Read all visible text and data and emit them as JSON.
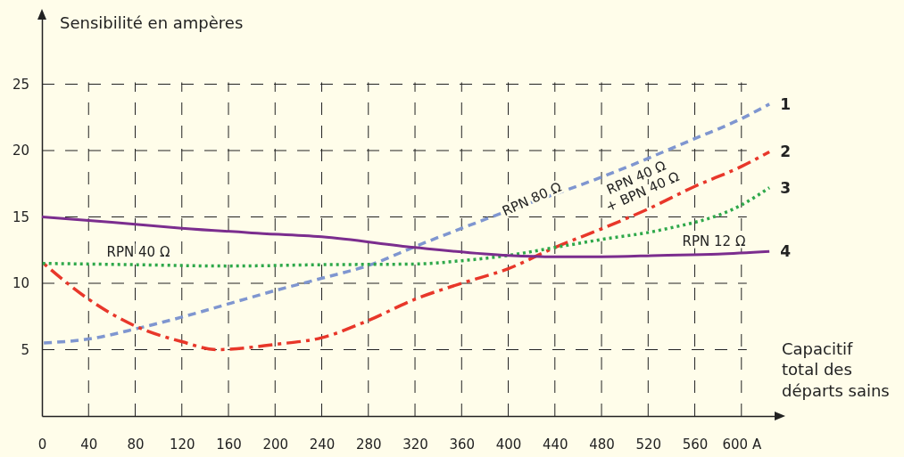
{
  "chart_data": {
    "type": "line",
    "ylabel": "Sensibilité en ampères",
    "xlabel": "Capacitif\ntotal des\ndéparts sains",
    "xlim": [
      0,
      630
    ],
    "ylim": [
      0,
      30
    ],
    "xticks": [
      0,
      40,
      80,
      120,
      160,
      200,
      240,
      280,
      320,
      360,
      400,
      440,
      480,
      520,
      560,
      {
        "value": 600,
        "label": "600 A"
      }
    ],
    "yticks": [
      5,
      10,
      15,
      20,
      25
    ],
    "grid": true,
    "legend": false,
    "marker": "none",
    "series": [
      {
        "name": "1",
        "color": "#7f96d0",
        "line_style": "dashed",
        "x": [
          0,
          40,
          82,
          122,
          162,
          202,
          241,
          282,
          321,
          401,
          480,
          560,
          600,
          624
        ],
        "values": [
          5.5,
          5.8,
          6.6,
          7.5,
          8.5,
          9.5,
          10.4,
          11.4,
          12.8,
          15.5,
          18.0,
          20.9,
          22.4,
          23.5
        ]
      },
      {
        "name": "2",
        "color": "#e8372a",
        "line_style": "dashdot",
        "x": [
          0,
          40,
          82,
          120,
          150,
          200,
          240,
          280,
          320,
          360,
          400,
          440,
          480,
          520,
          560,
          600,
          624
        ],
        "values": [
          11.6,
          8.8,
          6.7,
          5.6,
          5.0,
          5.4,
          5.9,
          7.2,
          8.8,
          10.0,
          11.1,
          12.7,
          14.1,
          15.6,
          17.3,
          18.8,
          19.9
        ]
      },
      {
        "name": "3",
        "color": "#2ea84a",
        "line_style": "dotted",
        "x": [
          0,
          80,
          160,
          240,
          320,
          360,
          400,
          440,
          480,
          530,
          600,
          624
        ],
        "values": [
          11.5,
          11.4,
          11.3,
          11.4,
          11.45,
          11.7,
          12.1,
          12.7,
          13.3,
          14.0,
          15.9,
          17.2
        ]
      },
      {
        "name": "4",
        "color": "#7b2d8e",
        "line_style": "solid",
        "x": [
          0,
          60,
          120,
          180,
          240,
          320,
          400,
          440,
          480,
          530,
          580,
          624
        ],
        "values": [
          15.0,
          14.6,
          14.15,
          13.8,
          13.5,
          12.7,
          12.1,
          12.0,
          12.0,
          12.1,
          12.2,
          12.4
        ]
      }
    ],
    "annotations": [
      "RPN 80 Ω",
      "RPN 40 Ω\n+ BPN 40 Ω",
      "RPN 40 Ω",
      "RPN 12 Ω"
    ]
  }
}
